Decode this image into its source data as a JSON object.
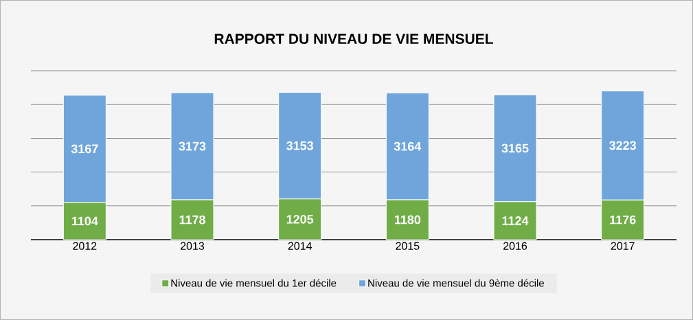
{
  "chart_data": {
    "type": "bar",
    "title": "RAPPORT DU NIVEAU DE VIE MENSUEL",
    "categories": [
      "2012",
      "2013",
      "2014",
      "2015",
      "2016",
      "2017"
    ],
    "stacked": true,
    "data_labels": true,
    "grid": "y",
    "legend": "bottom",
    "tick_labels": "x",
    "ylim": [
      0,
      5000
    ],
    "yticks": [
      {
        "value": 0,
        "label": null
      },
      {
        "value": 1000,
        "label": null
      },
      {
        "value": 2000,
        "label": null
      },
      {
        "value": 3000,
        "label": null
      },
      {
        "value": 4000,
        "label": null
      },
      {
        "value": 5000,
        "label": null
      }
    ],
    "series": [
      {
        "name": "Niveau de vie mensuel du 1er décile",
        "color": "#70ad47",
        "values": [
          1104,
          1178,
          1205,
          1180,
          1124,
          1176
        ]
      },
      {
        "name": "Niveau de vie mensuel du 9ème décile",
        "color": "#6fa5da",
        "values": [
          3167,
          3173,
          3153,
          3164,
          3165,
          3223
        ]
      }
    ]
  }
}
